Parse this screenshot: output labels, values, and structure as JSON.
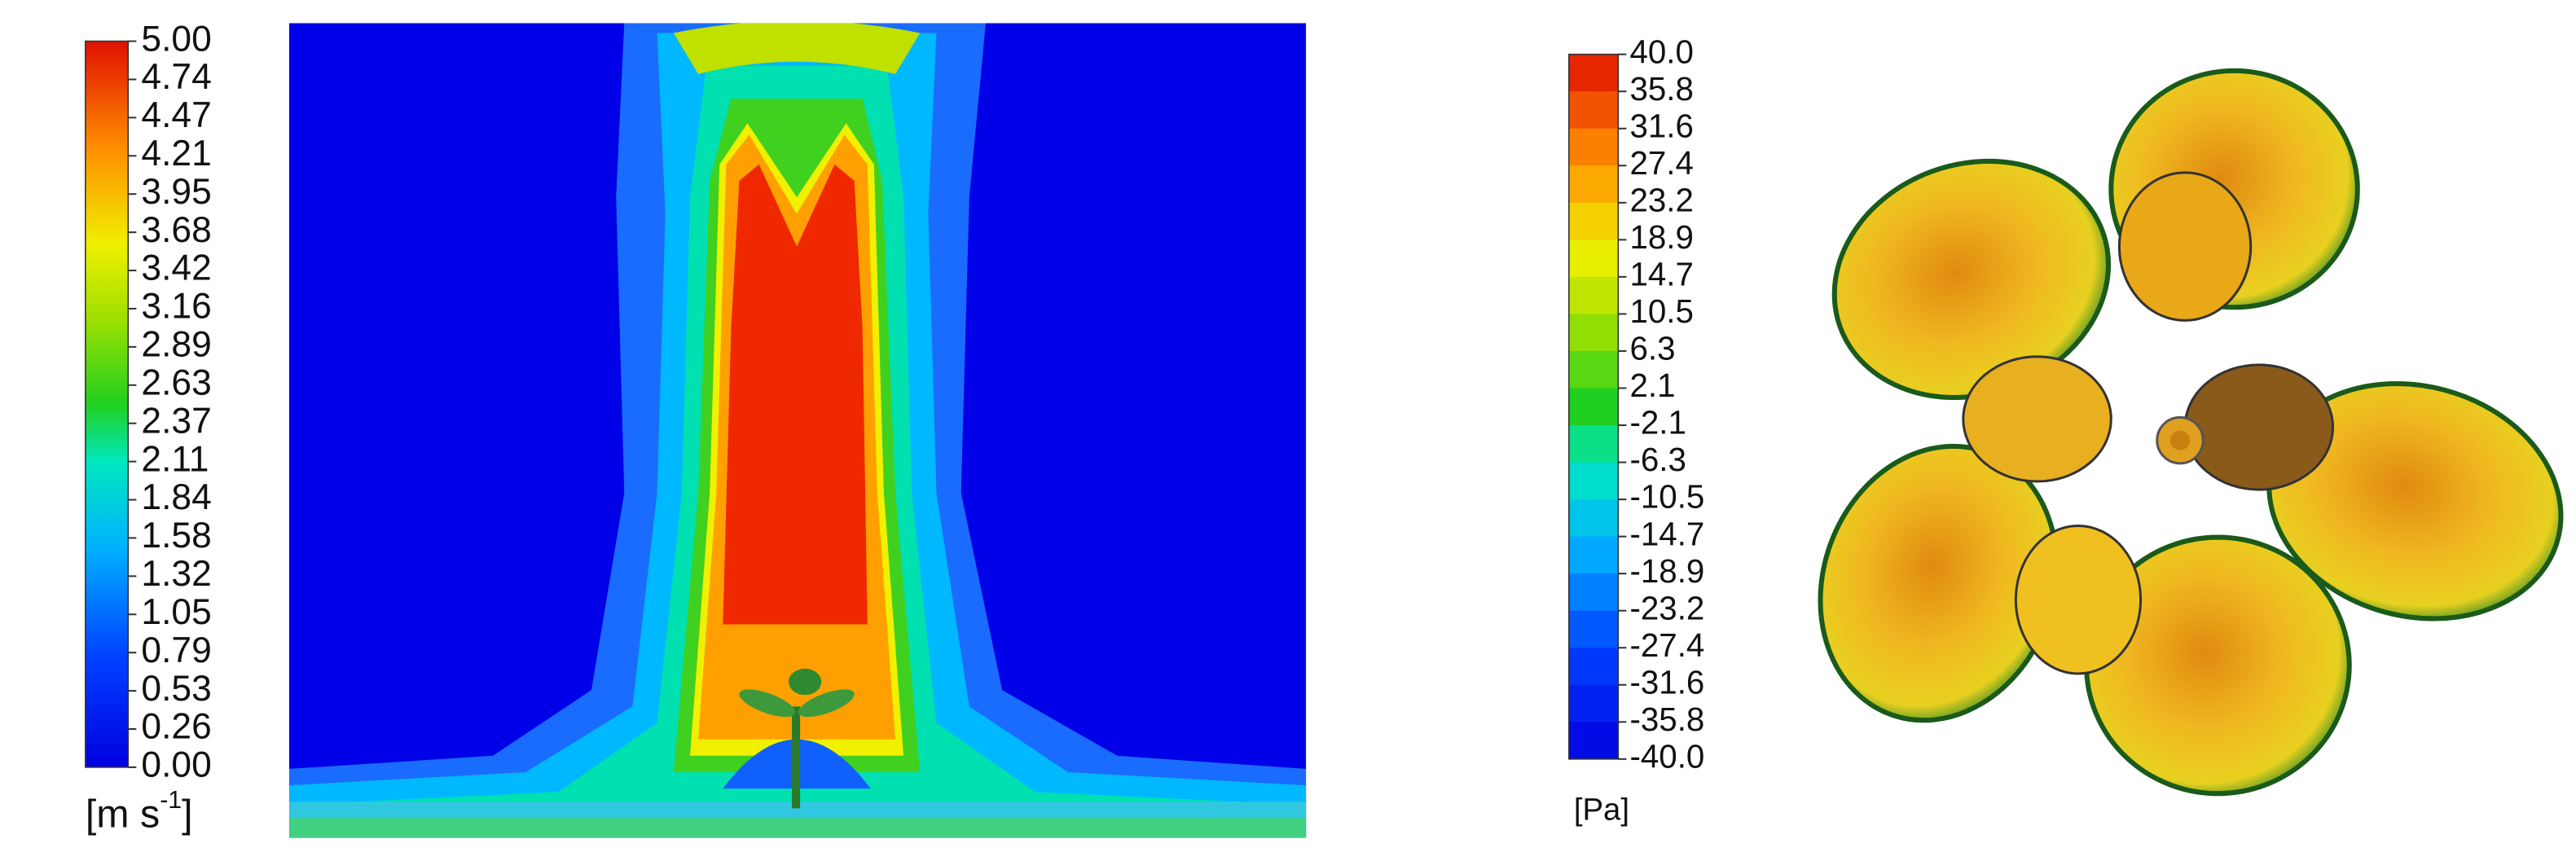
{
  "velocity_legend": {
    "ticks": [
      "5.00",
      "4.74",
      "4.47",
      "4.21",
      "3.95",
      "3.68",
      "3.42",
      "3.16",
      "2.89",
      "2.63",
      "2.37",
      "2.11",
      "1.84",
      "1.58",
      "1.32",
      "1.05",
      "0.79",
      "0.53",
      "0.26",
      "0.00"
    ],
    "unit": "[m s",
    "unit_exponent": "-1",
    "unit_close": "]"
  },
  "pressure_legend": {
    "ticks": [
      "40.0",
      "35.8",
      "31.6",
      "27.4",
      "23.2",
      "18.9",
      "14.7",
      "10.5",
      "6.3",
      "2.1",
      "-2.1",
      "-6.3",
      "-10.5",
      "-14.7",
      "-18.9",
      "-23.2",
      "-27.4",
      "-31.6",
      "-35.8",
      "-40.0"
    ],
    "unit": "[Pa]"
  }
}
